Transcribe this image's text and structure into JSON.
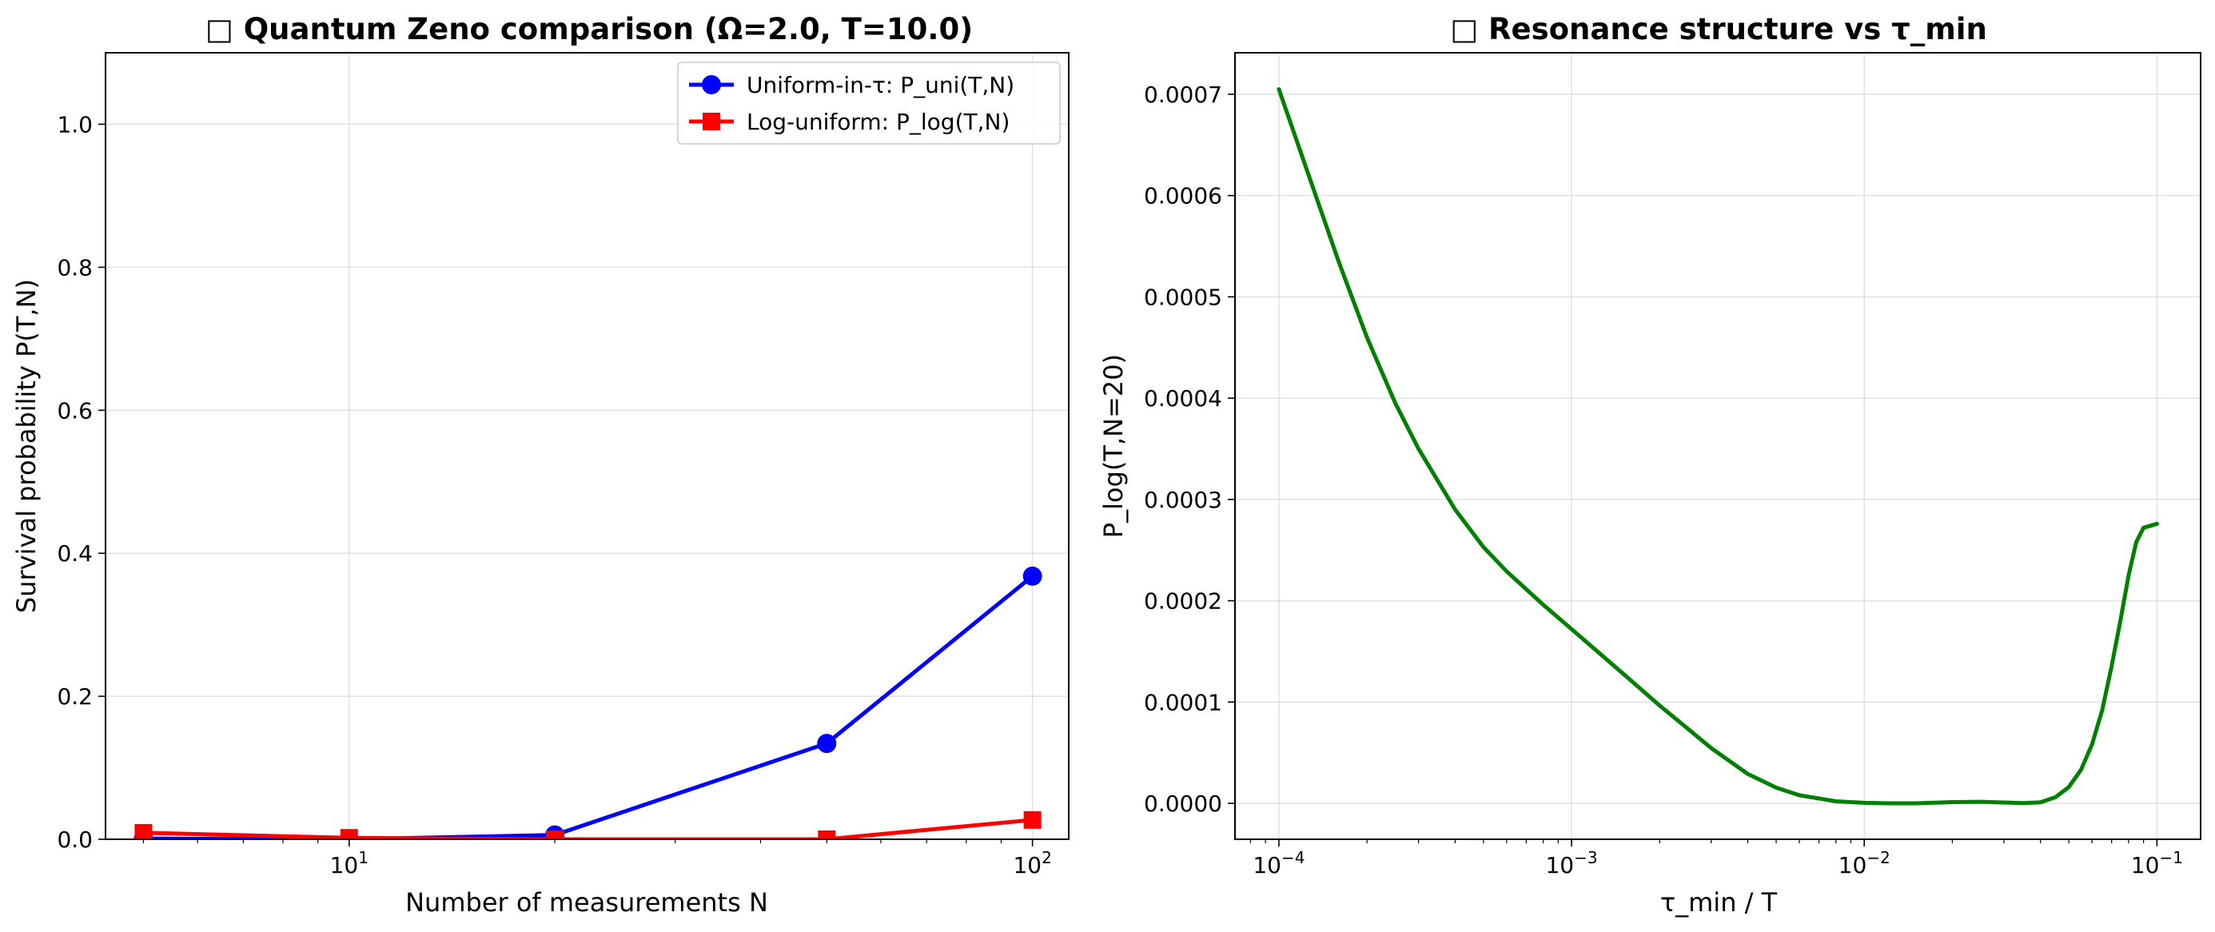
{
  "chart_data": [
    {
      "type": "line",
      "title": "□ Quantum Zeno comparison (Ω=2.0, T=10.0)",
      "xlabel": "Number of measurements N",
      "ylabel": "Survival probability P(T,N)",
      "xscale": "log",
      "xlim": [
        4.4,
        113
      ],
      "ylim": [
        0,
        1.1
      ],
      "grid": true,
      "legend_position": "top-right",
      "xticks": [
        {
          "value": 10,
          "base": "10",
          "exp": "1"
        },
        {
          "value": 100,
          "base": "10",
          "exp": "2"
        }
      ],
      "yticks": [
        {
          "value": 0.0,
          "label": "0.0"
        },
        {
          "value": 0.2,
          "label": "0.2"
        },
        {
          "value": 0.4,
          "label": "0.4"
        },
        {
          "value": 0.6,
          "label": "0.6"
        },
        {
          "value": 0.8,
          "label": "0.8"
        },
        {
          "value": 1.0,
          "label": "1.0"
        }
      ],
      "series": [
        {
          "name": "Uniform-in-τ: P_uni(T,N)",
          "color": "#0000ff",
          "marker": "circle",
          "x": [
            5,
            10,
            20,
            50,
            100
          ],
          "y": [
            0.001,
            0.0,
            0.006,
            0.134,
            0.368
          ]
        },
        {
          "name": "Log-uniform: P_log(T,N)",
          "color": "#ff0000",
          "marker": "square",
          "x": [
            5,
            10,
            20,
            50,
            100
          ],
          "y": [
            0.009,
            0.002,
            0.0,
            0.0,
            0.027
          ]
        }
      ]
    },
    {
      "type": "line",
      "title": "□ Resonance structure vs τ_min",
      "xlabel": "τ_min / T",
      "ylabel": "P_log(T,N=20)",
      "xscale": "log",
      "xlim": [
        7.08e-05,
        0.141
      ],
      "ylim": [
        -3.55e-05,
        0.000741
      ],
      "grid": true,
      "xticks": [
        {
          "value": 0.0001,
          "base": "10",
          "exp": "−4"
        },
        {
          "value": 0.001,
          "base": "10",
          "exp": "−3"
        },
        {
          "value": 0.01,
          "base": "10",
          "exp": "−2"
        },
        {
          "value": 0.1,
          "base": "10",
          "exp": "−1"
        }
      ],
      "yticks": [
        {
          "value": 0.0,
          "label": "0.0000"
        },
        {
          "value": 0.0001,
          "label": "0.0001"
        },
        {
          "value": 0.0002,
          "label": "0.0002"
        },
        {
          "value": 0.0003,
          "label": "0.0003"
        },
        {
          "value": 0.0004,
          "label": "0.0004"
        },
        {
          "value": 0.0005,
          "label": "0.0005"
        },
        {
          "value": 0.0006,
          "label": "0.0006"
        },
        {
          "value": 0.0007,
          "label": "0.0007"
        }
      ],
      "series": [
        {
          "color": "#008000",
          "x": [
            0.0001,
            0.00013,
            0.00016,
            0.0002,
            0.00025,
            0.0003,
            0.0004,
            0.0005,
            0.0006,
            0.0008,
            0.001,
            0.0015,
            0.002,
            0.003,
            0.004,
            0.005,
            0.006,
            0.008,
            0.01,
            0.012,
            0.015,
            0.02,
            0.025,
            0.03,
            0.035,
            0.04,
            0.045,
            0.05,
            0.055,
            0.06,
            0.065,
            0.07,
            0.075,
            0.08,
            0.085,
            0.09,
            0.1
          ],
          "y": [
            0.000705,
            0.00061,
            0.000535,
            0.00046,
            0.000395,
            0.00035,
            0.00029,
            0.000253,
            0.000229,
            0.000196,
            0.000172,
            0.000128,
            9.65e-05,
            5.45e-05,
            2.9e-05,
            1.55e-05,
            8e-06,
            2e-06,
            5e-07,
            0.0,
            0.0,
            1.2e-06,
            1.5e-06,
            8e-07,
            2e-07,
            1e-06,
            6e-06,
            1.6e-05,
            3.3e-05,
            5.8e-05,
            9.2e-05,
            0.000135,
            0.00018,
            0.000225,
            0.000258,
            0.000272,
            0.000276
          ]
        }
      ]
    }
  ]
}
